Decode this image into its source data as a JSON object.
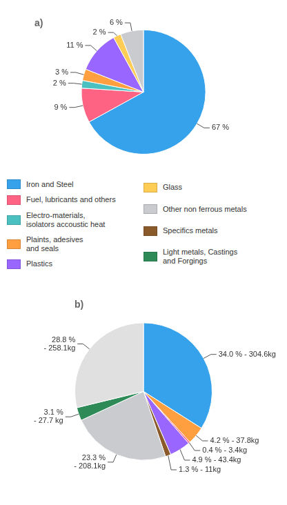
{
  "chart_data": [
    {
      "type": "pie",
      "title": "a)",
      "categories": [
        "Iron and Steel",
        "Fuel, lubricants and others",
        "Electro-materials,\nisolators accoustic heat",
        "Plaints, adesives\nand seals",
        "Plastics",
        "Glass",
        "Other non ferrous metals"
      ],
      "values": [
        67,
        9,
        2,
        3,
        11,
        2,
        6
      ],
      "value_labels": [
        "67 %",
        "9 %",
        "2 %",
        "3 %",
        "11 %",
        "2 %",
        "6 %"
      ],
      "colors": [
        "#36a2eb",
        "#ff6384",
        "#4bc0c0",
        "#ff9f40",
        "#9966ff",
        "#ffcd56",
        "#c9cbcf"
      ],
      "data_labels": true,
      "legend": "bottom"
    },
    {
      "type": "pie",
      "title": "b)",
      "categories": [
        "Iron and Steel",
        "Plaints, adesives\nand seals",
        "Fuel, lubricants and others",
        "Plastics",
        "Specifics metals",
        "Other non ferrous metals",
        "Light metals, Castings\nand Forgings",
        null
      ],
      "values": [
        34.0,
        4.2,
        0.4,
        4.9,
        1.3,
        23.3,
        3.1,
        28.8
      ],
      "value_labels": [
        "34.0 % - 304.6kg",
        "4.2 % - 37.8kg",
        "0.4 % - 3.4kg",
        "4.9 % - 43.4kg",
        "1.3 % - 11kg",
        "23.3 %\n- 208.1kg",
        "3.1 %\n- 27.7 kg",
        "28.8 %\n- 258.1kg"
      ],
      "colors": [
        "#36a2eb",
        "#ff9f40",
        "#ff6384",
        "#9966ff",
        "#8b5a2b",
        "#c9cbcf",
        "#2e8b57",
        "#e0e0e0"
      ],
      "data_labels": true
    }
  ]
}
